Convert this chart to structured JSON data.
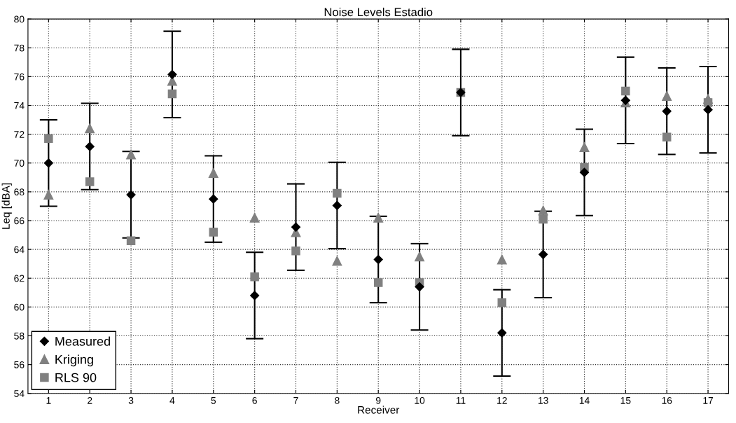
{
  "chart_data": {
    "type": "scatter",
    "title": "Noise Levels Estadio",
    "xlabel": "Receiver",
    "ylabel": "Leq [dBA]",
    "x": [
      1,
      2,
      3,
      4,
      5,
      6,
      7,
      8,
      9,
      10,
      11,
      12,
      13,
      14,
      15,
      16,
      17
    ],
    "series": [
      {
        "name": "Measured",
        "color": "#000000",
        "marker": "diamond",
        "values": [
          70.0,
          71.15,
          67.8,
          76.15,
          67.5,
          60.8,
          65.55,
          67.05,
          63.3,
          61.4,
          74.9,
          58.2,
          63.65,
          69.35,
          74.35,
          73.6,
          73.7
        ],
        "errors": [
          3,
          3,
          3,
          3,
          3,
          3,
          3,
          3,
          3,
          3,
          3,
          3,
          3,
          3,
          3,
          3,
          3
        ]
      },
      {
        "name": "Kriging",
        "color": "#808080",
        "marker": "triangle",
        "values": [
          67.8,
          72.4,
          70.6,
          75.7,
          69.3,
          66.2,
          65.2,
          63.2,
          66.2,
          63.5,
          null,
          63.3,
          66.7,
          71.1,
          74.2,
          74.65,
          74.45
        ]
      },
      {
        "name": "RLS 90",
        "color": "#808080",
        "marker": "square",
        "values": [
          71.7,
          68.7,
          64.6,
          74.8,
          65.2,
          62.1,
          63.9,
          67.9,
          61.7,
          61.7,
          74.9,
          60.3,
          66.1,
          69.7,
          75.0,
          71.8,
          74.2
        ]
      }
    ],
    "xlim": [
      0.5,
      17.5
    ],
    "xticks": [
      1,
      2,
      3,
      4,
      5,
      6,
      7,
      8,
      9,
      10,
      11,
      12,
      13,
      14,
      15,
      16,
      17
    ],
    "ylim": [
      54,
      80
    ],
    "yticks": [
      54,
      56,
      58,
      60,
      62,
      64,
      66,
      68,
      70,
      72,
      74,
      76,
      78,
      80
    ],
    "grid": true,
    "legend": "bottom left"
  }
}
